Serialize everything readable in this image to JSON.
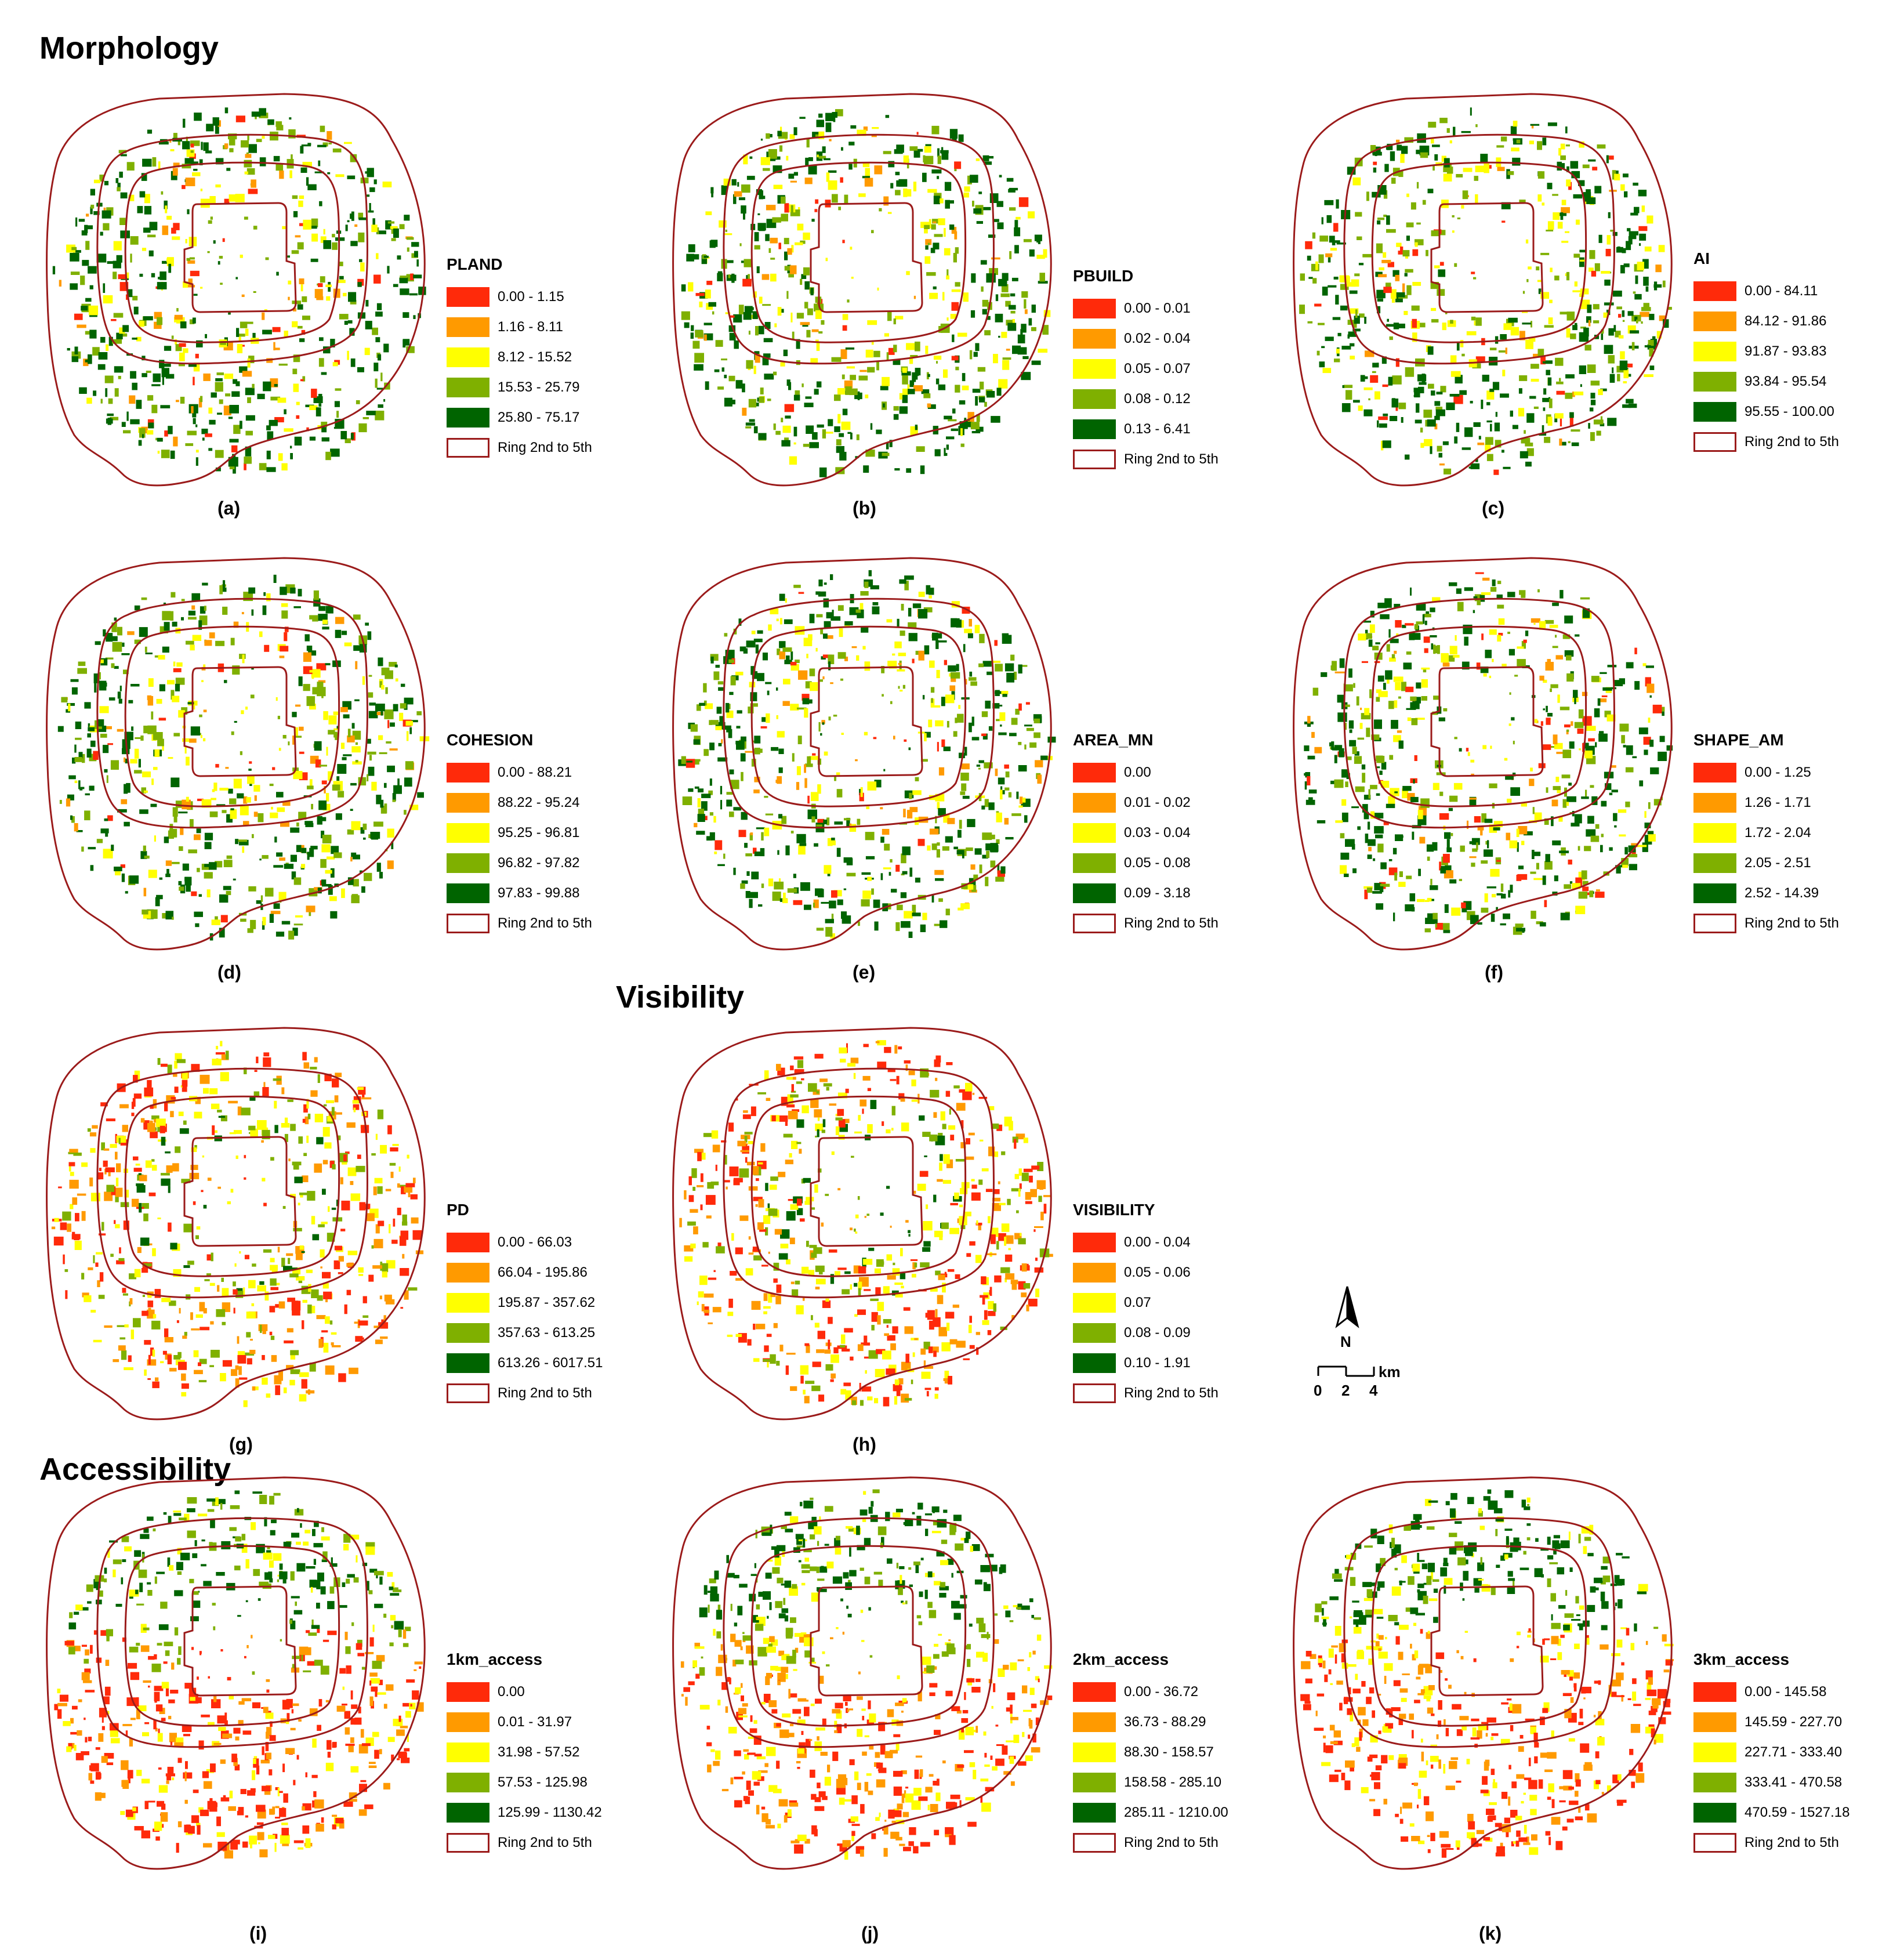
{
  "sections": {
    "morphology": "Morphology",
    "visibility": "Visibility",
    "accessibility": "Accessibility"
  },
  "colors": {
    "class1": "#ff2a0a",
    "class2": "#ff9a00",
    "class3": "#ffff00",
    "class4": "#7fb000",
    "class5": "#006400",
    "ring": "#9b1b1b"
  },
  "ring_label": "Ring 2nd to 5th",
  "panels": [
    {
      "caption": "(a)",
      "legend_title": "PLAND",
      "classes": [
        "0.00 - 1.15",
        "1.16 - 8.11",
        "8.12 - 15.52",
        "15.53 - 25.79",
        "25.80 - 75.17"
      ]
    },
    {
      "caption": "(b)",
      "legend_title": "PBUILD",
      "classes": [
        "0.00 - 0.01",
        "0.02 - 0.04",
        "0.05 - 0.07",
        "0.08 - 0.12",
        "0.13 - 6.41"
      ]
    },
    {
      "caption": "(c)",
      "legend_title": "AI",
      "classes": [
        "0.00 - 84.11",
        "84.12 - 91.86",
        "91.87 - 93.83",
        "93.84 - 95.54",
        "95.55 - 100.00"
      ]
    },
    {
      "caption": "(d)",
      "legend_title": "COHESION",
      "classes": [
        "0.00 - 88.21",
        "88.22 - 95.24",
        "95.25 - 96.81",
        "96.82 - 97.82",
        "97.83 - 99.88"
      ]
    },
    {
      "caption": "(e)",
      "legend_title": "AREA_MN",
      "classes": [
        "0.00",
        "0.01 - 0.02",
        "0.03 - 0.04",
        "0.05 - 0.08",
        "0.09 - 3.18"
      ]
    },
    {
      "caption": "(f)",
      "legend_title": "SHAPE_AM",
      "classes": [
        "0.00 - 1.25",
        "1.26 - 1.71",
        "1.72 - 2.04",
        "2.05 - 2.51",
        "2.52 - 14.39"
      ]
    },
    {
      "caption": "(g)",
      "legend_title": "PD",
      "classes": [
        "0.00 - 66.03",
        "66.04 - 195.86",
        "195.87 - 357.62",
        "357.63 - 613.25",
        "613.26 - 6017.51"
      ]
    },
    {
      "caption": "(h)",
      "legend_title": "VISIBILITY",
      "classes": [
        "0.00 - 0.04",
        "0.05 - 0.06",
        "0.07",
        "0.08 - 0.09",
        "0.10 - 1.91"
      ]
    },
    {
      "caption": "(i)",
      "legend_title": "1km_access",
      "classes": [
        "0.00",
        "0.01 - 31.97",
        "31.98 - 57.52",
        "57.53 - 125.98",
        "125.99 - 1130.42"
      ]
    },
    {
      "caption": "(j)",
      "legend_title": "2km_access",
      "classes": [
        "0.00 - 36.72",
        "36.73 - 88.29",
        "88.30 - 158.57",
        "158.58 - 285.10",
        "285.11 - 1210.00"
      ]
    },
    {
      "caption": "(k)",
      "legend_title": "3km_access",
      "classes": [
        "0.00 - 145.58",
        "145.59 - 227.70",
        "227.71 - 333.40",
        "333.41 - 470.58",
        "470.59 - 1527.18"
      ]
    }
  ],
  "north_arrow": {
    "label": "N"
  },
  "scale_bar": {
    "ticks": [
      "0",
      "2",
      "4"
    ],
    "unit": "km"
  }
}
